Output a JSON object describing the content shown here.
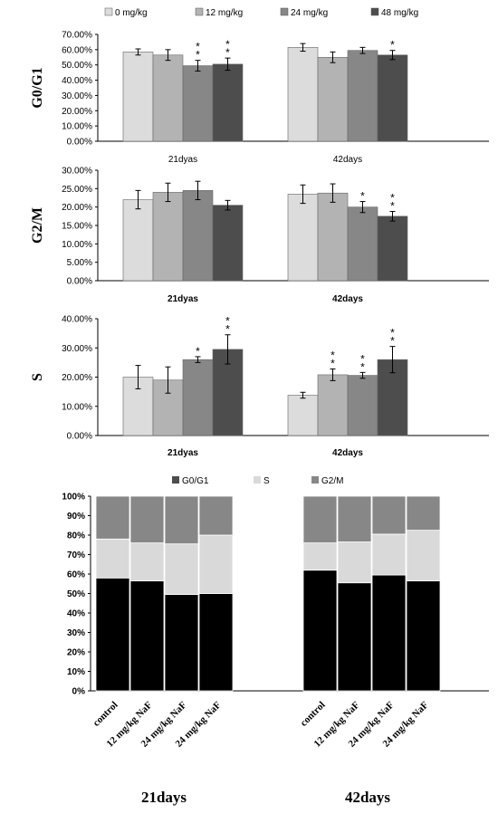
{
  "colors": {
    "dose0": "#dcdcdc",
    "dose12": "#b3b3b3",
    "dose24": "#878787",
    "dose48": "#4d4d4d",
    "g0g1": "#000000",
    "s": "#d9d9d9",
    "g2m": "#878787"
  },
  "legend_doses": [
    "0 mg/kg",
    "12 mg/kg",
    "24 mg/kg",
    "48 mg/kg"
  ],
  "legend_phases": [
    "G0/G1",
    "S",
    "G2/M"
  ],
  "chart_data": [
    {
      "type": "bar",
      "ylabel": "G0/G1",
      "categories": [
        "21dyas",
        "42days"
      ],
      "category_style": "normal",
      "ylim": [
        0,
        70
      ],
      "ytick_labels": [
        "0.00%",
        "10.00%",
        "20.00%",
        "30.00%",
        "40.00%",
        "50.00%",
        "60.00%",
        "70.00%"
      ],
      "series": [
        {
          "name": "0 mg/kg",
          "values": [
            58.5,
            61.5
          ],
          "errors": [
            2.0,
            2.5
          ],
          "stars": [
            "",
            ""
          ]
        },
        {
          "name": "12 mg/kg",
          "values": [
            56.5,
            55.0
          ],
          "errors": [
            3.5,
            3.5
          ],
          "stars": [
            "",
            ""
          ]
        },
        {
          "name": "24 mg/kg",
          "values": [
            49.5,
            59.5
          ],
          "errors": [
            3.5,
            2.0
          ],
          "stars": [
            "**",
            ""
          ]
        },
        {
          "name": "48 mg/kg",
          "values": [
            50.5,
            56.5
          ],
          "errors": [
            4.0,
            3.0
          ],
          "stars": [
            "**",
            "*"
          ]
        }
      ]
    },
    {
      "type": "bar",
      "ylabel": "G2/M",
      "categories": [
        "21dyas",
        "42days"
      ],
      "category_style": "bold",
      "ylim": [
        0,
        30
      ],
      "ytick_labels": [
        "0.00%",
        "5.00%",
        "10.00%",
        "15.00%",
        "20.00%",
        "25.00%",
        "30.00%"
      ],
      "series": [
        {
          "name": "0 mg/kg",
          "values": [
            22.0,
            23.5
          ],
          "errors": [
            2.5,
            2.5
          ],
          "stars": [
            "",
            ""
          ]
        },
        {
          "name": "12 mg/kg",
          "values": [
            24.0,
            23.8
          ],
          "errors": [
            2.5,
            2.5
          ],
          "stars": [
            "",
            ""
          ]
        },
        {
          "name": "24 mg/kg",
          "values": [
            24.5,
            20.0
          ],
          "errors": [
            2.5,
            1.5
          ],
          "stars": [
            "",
            "*"
          ]
        },
        {
          "name": "48 mg/kg",
          "values": [
            20.5,
            17.5
          ],
          "errors": [
            1.3,
            1.3
          ],
          "stars": [
            "",
            "**"
          ]
        }
      ]
    },
    {
      "type": "bar",
      "ylabel": "S",
      "categories": [
        "21dyas",
        "42days"
      ],
      "category_style": "bold",
      "ylim": [
        0,
        40
      ],
      "ytick_labels": [
        "0.00%",
        "10.00%",
        "20.00%",
        "30.00%",
        "40.00%"
      ],
      "series": [
        {
          "name": "0 mg/kg",
          "values": [
            20.0,
            13.8
          ],
          "errors": [
            4.0,
            1.0
          ],
          "stars": [
            "",
            ""
          ]
        },
        {
          "name": "12 mg/kg",
          "values": [
            19.0,
            20.8
          ],
          "errors": [
            4.5,
            2.0
          ],
          "stars": [
            "",
            "**"
          ]
        },
        {
          "name": "24 mg/kg",
          "values": [
            26.0,
            20.6
          ],
          "errors": [
            1.0,
            1.0
          ],
          "stars": [
            "*",
            "**"
          ]
        },
        {
          "name": "48 mg/kg",
          "values": [
            29.5,
            26.0
          ],
          "errors": [
            5.0,
            4.5
          ],
          "stars": [
            "**",
            "**"
          ]
        }
      ]
    },
    {
      "type": "bar",
      "stacked": true,
      "ylim": [
        0,
        100
      ],
      "ytick_labels": [
        "0%",
        "10%",
        "20%",
        "30%",
        "40%",
        "50%",
        "60%",
        "70%",
        "80%",
        "90%",
        "100%"
      ],
      "categories": [
        "control",
        "12 mg/kg NaF",
        "24 mg/kg NaF",
        "24 mg/kg NaF",
        "control",
        "12 mg/kg NaF",
        "24 mg/kg NaF",
        "24 mg/kg NaF"
      ],
      "groups": [
        "21days",
        "42days"
      ],
      "series": [
        {
          "name": "G0/G1",
          "values": [
            58,
            56.5,
            49.5,
            50,
            62,
            55.5,
            59.5,
            56.5
          ]
        },
        {
          "name": "S",
          "values": [
            20,
            19.5,
            26,
            30,
            14,
            21,
            21,
            26
          ]
        },
        {
          "name": "G2/M",
          "values": [
            22,
            24,
            24.5,
            20,
            24,
            23.5,
            19.5,
            17.5
          ]
        }
      ]
    }
  ]
}
